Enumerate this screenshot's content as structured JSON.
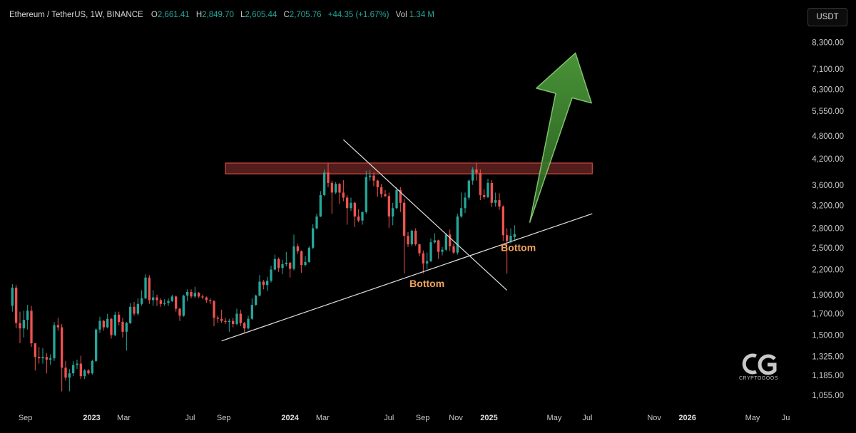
{
  "legend": {
    "symbol": "Ethereum / TetherUS, 1W, BINANCE",
    "open_label": "O",
    "open": "2,661.41",
    "high_label": "H",
    "high": "2,849.70",
    "low_label": "L",
    "low": "2,605.44",
    "close_label": "C",
    "close": "2,705.76",
    "change": "+44.35 (+1.67%)",
    "vol_label": "Vol",
    "vol": "1.34 M"
  },
  "currency": "USDT",
  "colors": {
    "up": "#26a69a",
    "down": "#ef5350",
    "background": "#000000",
    "resistance": "#ef5350",
    "arrow": "#4c9a3a",
    "annotation": "#f0a35c",
    "trendline": "#e0e0e0"
  },
  "chart_data": {
    "type": "candlestick",
    "interval": "1W",
    "y_scale": "log",
    "ylim": [
      1000,
      9000
    ],
    "xlim": [
      "2022-08-01",
      "2026-07-20"
    ],
    "grid": false,
    "y_ticks": [
      "8,300.00",
      "7,100.00",
      "6,300.00",
      "5,550.00",
      "4,800.00",
      "4,200.00",
      "3,600.00",
      "3,200.00",
      "2,800.00",
      "2,500.00",
      "2,200.00",
      "1,900.00",
      "1,700.00",
      "1,500.00",
      "1,325.00",
      "1,185.00",
      "1,055.00"
    ],
    "y_tick_values": [
      8300,
      7100,
      6300,
      5550,
      4800,
      4200,
      3600,
      3200,
      2800,
      2500,
      2200,
      1900,
      1700,
      1500,
      1325,
      1185,
      1055
    ],
    "x_ticks": [
      {
        "label": "Sep",
        "date": "2022-09-01",
        "bold": false
      },
      {
        "label": "2023",
        "date": "2023-01-01",
        "bold": true
      },
      {
        "label": "Mar",
        "date": "2023-03-01",
        "bold": false
      },
      {
        "label": "Jul",
        "date": "2023-07-01",
        "bold": false
      },
      {
        "label": "Sep",
        "date": "2023-09-01",
        "bold": false
      },
      {
        "label": "2024",
        "date": "2024-01-01",
        "bold": true
      },
      {
        "label": "Mar",
        "date": "2024-03-01",
        "bold": false
      },
      {
        "label": "Jul",
        "date": "2024-07-01",
        "bold": false
      },
      {
        "label": "Sep",
        "date": "2024-09-01",
        "bold": false
      },
      {
        "label": "Nov",
        "date": "2024-11-01",
        "bold": false
      },
      {
        "label": "2025",
        "date": "2025-01-01",
        "bold": true
      },
      {
        "label": "May",
        "date": "2025-05-01",
        "bold": false
      },
      {
        "label": "Jul",
        "date": "2025-07-01",
        "bold": false
      },
      {
        "label": "Nov",
        "date": "2025-11-01",
        "bold": false
      },
      {
        "label": "2026",
        "date": "2026-01-01",
        "bold": true
      },
      {
        "label": "May",
        "date": "2026-05-01",
        "bold": false
      },
      {
        "label": "Ju",
        "date": "2026-07-01",
        "bold": false
      }
    ],
    "candles": [
      {
        "d": "2022-08-08",
        "o": 1780,
        "h": 2020,
        "l": 1720,
        "c": 1980
      },
      {
        "d": "2022-08-15",
        "o": 1980,
        "h": 2010,
        "l": 1560,
        "c": 1610
      },
      {
        "d": "2022-08-22",
        "o": 1610,
        "h": 1720,
        "l": 1430,
        "c": 1560
      },
      {
        "d": "2022-08-29",
        "o": 1560,
        "h": 1730,
        "l": 1480,
        "c": 1640
      },
      {
        "d": "2022-09-05",
        "o": 1640,
        "h": 1790,
        "l": 1550,
        "c": 1730
      },
      {
        "d": "2022-09-12",
        "o": 1730,
        "h": 1780,
        "l": 1400,
        "c": 1430
      },
      {
        "d": "2022-09-19",
        "o": 1430,
        "h": 1420,
        "l": 1220,
        "c": 1320
      },
      {
        "d": "2022-09-26",
        "o": 1320,
        "h": 1400,
        "l": 1270,
        "c": 1310
      },
      {
        "d": "2022-10-03",
        "o": 1310,
        "h": 1390,
        "l": 1270,
        "c": 1320
      },
      {
        "d": "2022-10-10",
        "o": 1320,
        "h": 1350,
        "l": 1200,
        "c": 1300
      },
      {
        "d": "2022-10-17",
        "o": 1300,
        "h": 1340,
        "l": 1260,
        "c": 1310
      },
      {
        "d": "2022-10-24",
        "o": 1310,
        "h": 1620,
        "l": 1290,
        "c": 1590
      },
      {
        "d": "2022-10-31",
        "o": 1590,
        "h": 1660,
        "l": 1540,
        "c": 1570
      },
      {
        "d": "2022-11-07",
        "o": 1570,
        "h": 1600,
        "l": 1080,
        "c": 1240
      },
      {
        "d": "2022-11-14",
        "o": 1240,
        "h": 1290,
        "l": 1150,
        "c": 1170
      },
      {
        "d": "2022-11-21",
        "o": 1170,
        "h": 1230,
        "l": 1080,
        "c": 1200
      },
      {
        "d": "2022-11-28",
        "o": 1200,
        "h": 1290,
        "l": 1180,
        "c": 1260
      },
      {
        "d": "2022-12-05",
        "o": 1260,
        "h": 1300,
        "l": 1230,
        "c": 1270
      },
      {
        "d": "2022-12-12",
        "o": 1270,
        "h": 1330,
        "l": 1160,
        "c": 1180
      },
      {
        "d": "2022-12-19",
        "o": 1180,
        "h": 1230,
        "l": 1160,
        "c": 1220
      },
      {
        "d": "2022-12-26",
        "o": 1220,
        "h": 1230,
        "l": 1190,
        "c": 1200
      },
      {
        "d": "2023-01-02",
        "o": 1200,
        "h": 1300,
        "l": 1190,
        "c": 1290
      },
      {
        "d": "2023-01-09",
        "o": 1290,
        "h": 1560,
        "l": 1280,
        "c": 1550
      },
      {
        "d": "2023-01-16",
        "o": 1550,
        "h": 1670,
        "l": 1520,
        "c": 1630
      },
      {
        "d": "2023-01-23",
        "o": 1630,
        "h": 1640,
        "l": 1540,
        "c": 1570
      },
      {
        "d": "2023-01-30",
        "o": 1570,
        "h": 1700,
        "l": 1560,
        "c": 1650
      },
      {
        "d": "2023-02-06",
        "o": 1650,
        "h": 1660,
        "l": 1470,
        "c": 1500
      },
      {
        "d": "2023-02-13",
        "o": 1500,
        "h": 1720,
        "l": 1490,
        "c": 1690
      },
      {
        "d": "2023-02-20",
        "o": 1690,
        "h": 1720,
        "l": 1590,
        "c": 1620
      },
      {
        "d": "2023-02-27",
        "o": 1620,
        "h": 1660,
        "l": 1480,
        "c": 1530
      },
      {
        "d": "2023-03-06",
        "o": 1530,
        "h": 1620,
        "l": 1370,
        "c": 1610
      },
      {
        "d": "2023-03-13",
        "o": 1610,
        "h": 1810,
        "l": 1600,
        "c": 1770
      },
      {
        "d": "2023-03-20",
        "o": 1770,
        "h": 1820,
        "l": 1680,
        "c": 1700
      },
      {
        "d": "2023-03-27",
        "o": 1700,
        "h": 1860,
        "l": 1680,
        "c": 1800
      },
      {
        "d": "2023-04-03",
        "o": 1800,
        "h": 1950,
        "l": 1780,
        "c": 1860
      },
      {
        "d": "2023-04-10",
        "o": 1860,
        "h": 2140,
        "l": 1850,
        "c": 2100
      },
      {
        "d": "2023-04-17",
        "o": 2100,
        "h": 2130,
        "l": 1800,
        "c": 1840
      },
      {
        "d": "2023-04-24",
        "o": 1840,
        "h": 1950,
        "l": 1780,
        "c": 1870
      },
      {
        "d": "2023-05-01",
        "o": 1870,
        "h": 1900,
        "l": 1780,
        "c": 1840
      },
      {
        "d": "2023-05-08",
        "o": 1840,
        "h": 1860,
        "l": 1770,
        "c": 1800
      },
      {
        "d": "2023-05-15",
        "o": 1800,
        "h": 1850,
        "l": 1780,
        "c": 1810
      },
      {
        "d": "2023-05-22",
        "o": 1810,
        "h": 1860,
        "l": 1780,
        "c": 1830
      },
      {
        "d": "2023-05-29",
        "o": 1830,
        "h": 1900,
        "l": 1820,
        "c": 1880
      },
      {
        "d": "2023-06-05",
        "o": 1880,
        "h": 1890,
        "l": 1720,
        "c": 1750
      },
      {
        "d": "2023-06-12",
        "o": 1750,
        "h": 1760,
        "l": 1630,
        "c": 1680
      },
      {
        "d": "2023-06-19",
        "o": 1680,
        "h": 1900,
        "l": 1670,
        "c": 1890
      },
      {
        "d": "2023-06-26",
        "o": 1890,
        "h": 1960,
        "l": 1830,
        "c": 1930
      },
      {
        "d": "2023-07-03",
        "o": 1930,
        "h": 1960,
        "l": 1860,
        "c": 1880
      },
      {
        "d": "2023-07-10",
        "o": 1880,
        "h": 1990,
        "l": 1860,
        "c": 1920
      },
      {
        "d": "2023-07-17",
        "o": 1920,
        "h": 1930,
        "l": 1860,
        "c": 1880
      },
      {
        "d": "2023-07-24",
        "o": 1880,
        "h": 1900,
        "l": 1850,
        "c": 1870
      },
      {
        "d": "2023-07-31",
        "o": 1870,
        "h": 1880,
        "l": 1810,
        "c": 1840
      },
      {
        "d": "2023-08-07",
        "o": 1840,
        "h": 1860,
        "l": 1800,
        "c": 1830
      },
      {
        "d": "2023-08-14",
        "o": 1830,
        "h": 1840,
        "l": 1580,
        "c": 1660
      },
      {
        "d": "2023-08-21",
        "o": 1660,
        "h": 1680,
        "l": 1610,
        "c": 1650
      },
      {
        "d": "2023-08-28",
        "o": 1650,
        "h": 1740,
        "l": 1610,
        "c": 1630
      },
      {
        "d": "2023-09-04",
        "o": 1630,
        "h": 1660,
        "l": 1600,
        "c": 1620
      },
      {
        "d": "2023-09-11",
        "o": 1620,
        "h": 1650,
        "l": 1530,
        "c": 1630
      },
      {
        "d": "2023-09-18",
        "o": 1630,
        "h": 1660,
        "l": 1570,
        "c": 1600
      },
      {
        "d": "2023-09-25",
        "o": 1600,
        "h": 1750,
        "l": 1590,
        "c": 1700
      },
      {
        "d": "2023-10-02",
        "o": 1700,
        "h": 1740,
        "l": 1580,
        "c": 1610
      },
      {
        "d": "2023-10-09",
        "o": 1610,
        "h": 1620,
        "l": 1520,
        "c": 1560
      },
      {
        "d": "2023-10-16",
        "o": 1560,
        "h": 1680,
        "l": 1550,
        "c": 1650
      },
      {
        "d": "2023-10-23",
        "o": 1650,
        "h": 1860,
        "l": 1640,
        "c": 1790
      },
      {
        "d": "2023-10-30",
        "o": 1790,
        "h": 1900,
        "l": 1780,
        "c": 1890
      },
      {
        "d": "2023-11-06",
        "o": 1890,
        "h": 2130,
        "l": 1880,
        "c": 2050
      },
      {
        "d": "2023-11-13",
        "o": 2050,
        "h": 2070,
        "l": 1960,
        "c": 2010
      },
      {
        "d": "2023-11-20",
        "o": 2010,
        "h": 2110,
        "l": 1940,
        "c": 2060
      },
      {
        "d": "2023-11-27",
        "o": 2060,
        "h": 2250,
        "l": 2040,
        "c": 2200
      },
      {
        "d": "2023-12-04",
        "o": 2200,
        "h": 2400,
        "l": 2190,
        "c": 2340
      },
      {
        "d": "2023-12-11",
        "o": 2340,
        "h": 2360,
        "l": 2170,
        "c": 2220
      },
      {
        "d": "2023-12-18",
        "o": 2220,
        "h": 2330,
        "l": 2140,
        "c": 2270
      },
      {
        "d": "2023-12-25",
        "o": 2270,
        "h": 2440,
        "l": 2240,
        "c": 2290
      },
      {
        "d": "2024-01-01",
        "o": 2290,
        "h": 2300,
        "l": 2100,
        "c": 2210
      },
      {
        "d": "2024-01-08",
        "o": 2210,
        "h": 2700,
        "l": 2190,
        "c": 2520
      },
      {
        "d": "2024-01-15",
        "o": 2520,
        "h": 2560,
        "l": 2410,
        "c": 2450
      },
      {
        "d": "2024-01-22",
        "o": 2450,
        "h": 2460,
        "l": 2160,
        "c": 2260
      },
      {
        "d": "2024-01-29",
        "o": 2260,
        "h": 2380,
        "l": 2240,
        "c": 2300
      },
      {
        "d": "2024-02-05",
        "o": 2300,
        "h": 2520,
        "l": 2290,
        "c": 2500
      },
      {
        "d": "2024-02-12",
        "o": 2500,
        "h": 2870,
        "l": 2480,
        "c": 2800
      },
      {
        "d": "2024-02-19",
        "o": 2800,
        "h": 3050,
        "l": 2780,
        "c": 3000
      },
      {
        "d": "2024-02-26",
        "o": 3000,
        "h": 3480,
        "l": 2990,
        "c": 3400
      },
      {
        "d": "2024-03-04",
        "o": 3400,
        "h": 3950,
        "l": 3380,
        "c": 3880
      },
      {
        "d": "2024-03-11",
        "o": 3880,
        "h": 4090,
        "l": 3560,
        "c": 3650
      },
      {
        "d": "2024-03-18",
        "o": 3650,
        "h": 3700,
        "l": 3050,
        "c": 3450
      },
      {
        "d": "2024-03-25",
        "o": 3450,
        "h": 3670,
        "l": 3420,
        "c": 3630
      },
      {
        "d": "2024-04-01",
        "o": 3630,
        "h": 3650,
        "l": 3230,
        "c": 3450
      },
      {
        "d": "2024-04-08",
        "o": 3450,
        "h": 3710,
        "l": 3280,
        "c": 3350
      },
      {
        "d": "2024-04-15",
        "o": 3350,
        "h": 3400,
        "l": 2860,
        "c": 3150
      },
      {
        "d": "2024-04-22",
        "o": 3150,
        "h": 3350,
        "l": 3100,
        "c": 3250
      },
      {
        "d": "2024-04-29",
        "o": 3250,
        "h": 3270,
        "l": 2820,
        "c": 3000
      },
      {
        "d": "2024-05-06",
        "o": 3000,
        "h": 3130,
        "l": 2900,
        "c": 2930
      },
      {
        "d": "2024-05-13",
        "o": 2930,
        "h": 3090,
        "l": 2860,
        "c": 3080
      },
      {
        "d": "2024-05-20",
        "o": 3080,
        "h": 3920,
        "l": 3050,
        "c": 3780
      },
      {
        "d": "2024-05-27",
        "o": 3780,
        "h": 3930,
        "l": 3700,
        "c": 3810
      },
      {
        "d": "2024-06-03",
        "o": 3810,
        "h": 3880,
        "l": 3580,
        "c": 3700
      },
      {
        "d": "2024-06-10",
        "o": 3700,
        "h": 3720,
        "l": 3370,
        "c": 3560
      },
      {
        "d": "2024-06-17",
        "o": 3560,
        "h": 3630,
        "l": 3350,
        "c": 3420
      },
      {
        "d": "2024-06-24",
        "o": 3420,
        "h": 3500,
        "l": 3360,
        "c": 3380
      },
      {
        "d": "2024-07-01",
        "o": 3380,
        "h": 3450,
        "l": 2810,
        "c": 3000
      },
      {
        "d": "2024-07-08",
        "o": 3000,
        "h": 3250,
        "l": 2850,
        "c": 3150
      },
      {
        "d": "2024-07-15",
        "o": 3150,
        "h": 3560,
        "l": 3130,
        "c": 3500
      },
      {
        "d": "2024-07-22",
        "o": 3500,
        "h": 3560,
        "l": 3080,
        "c": 3250
      },
      {
        "d": "2024-07-29",
        "o": 3250,
        "h": 3330,
        "l": 2150,
        "c": 2680
      },
      {
        "d": "2024-08-05",
        "o": 2680,
        "h": 2740,
        "l": 2510,
        "c": 2550
      },
      {
        "d": "2024-08-12",
        "o": 2550,
        "h": 2780,
        "l": 2520,
        "c": 2760
      },
      {
        "d": "2024-08-19",
        "o": 2760,
        "h": 2800,
        "l": 2530,
        "c": 2550
      },
      {
        "d": "2024-08-26",
        "o": 2550,
        "h": 2560,
        "l": 2380,
        "c": 2420
      },
      {
        "d": "2024-09-02",
        "o": 2420,
        "h": 2460,
        "l": 2150,
        "c": 2280
      },
      {
        "d": "2024-09-09",
        "o": 2280,
        "h": 2430,
        "l": 2200,
        "c": 2310
      },
      {
        "d": "2024-09-16",
        "o": 2310,
        "h": 2640,
        "l": 2300,
        "c": 2580
      },
      {
        "d": "2024-09-23",
        "o": 2580,
        "h": 2720,
        "l": 2560,
        "c": 2610
      },
      {
        "d": "2024-09-30",
        "o": 2610,
        "h": 2620,
        "l": 2340,
        "c": 2440
      },
      {
        "d": "2024-10-07",
        "o": 2440,
        "h": 2510,
        "l": 2390,
        "c": 2470
      },
      {
        "d": "2024-10-14",
        "o": 2470,
        "h": 2720,
        "l": 2450,
        "c": 2700
      },
      {
        "d": "2024-10-21",
        "o": 2700,
        "h": 2780,
        "l": 2450,
        "c": 2520
      },
      {
        "d": "2024-10-28",
        "o": 2520,
        "h": 2560,
        "l": 2410,
        "c": 2430
      },
      {
        "d": "2024-11-04",
        "o": 2430,
        "h": 3050,
        "l": 2400,
        "c": 3000
      },
      {
        "d": "2024-11-11",
        "o": 3000,
        "h": 3450,
        "l": 2980,
        "c": 3150
      },
      {
        "d": "2024-11-18",
        "o": 3150,
        "h": 3450,
        "l": 3060,
        "c": 3350
      },
      {
        "d": "2024-11-25",
        "o": 3350,
        "h": 3720,
        "l": 3310,
        "c": 3700
      },
      {
        "d": "2024-12-02",
        "o": 3700,
        "h": 4000,
        "l": 3610,
        "c": 3950
      },
      {
        "d": "2024-12-09",
        "o": 3950,
        "h": 4100,
        "l": 3700,
        "c": 3870
      },
      {
        "d": "2024-12-16",
        "o": 3870,
        "h": 3950,
        "l": 3300,
        "c": 3400
      },
      {
        "d": "2024-12-23",
        "o": 3400,
        "h": 3520,
        "l": 3320,
        "c": 3360
      },
      {
        "d": "2024-12-30",
        "o": 3360,
        "h": 3740,
        "l": 3340,
        "c": 3650
      },
      {
        "d": "2025-01-06",
        "o": 3650,
        "h": 3710,
        "l": 3170,
        "c": 3250
      },
      {
        "d": "2025-01-13",
        "o": 3250,
        "h": 3450,
        "l": 3180,
        "c": 3300
      },
      {
        "d": "2025-01-20",
        "o": 3300,
        "h": 3440,
        "l": 3120,
        "c": 3180
      },
      {
        "d": "2025-01-27",
        "o": 3180,
        "h": 3200,
        "l": 2600,
        "c": 2690
      },
      {
        "d": "2025-02-03",
        "o": 2690,
        "h": 2800,
        "l": 2150,
        "c": 2600
      },
      {
        "d": "2025-02-10",
        "o": 2600,
        "h": 2800,
        "l": 2560,
        "c": 2680
      },
      {
        "d": "2025-02-17",
        "o": 2661.41,
        "h": 2849.7,
        "l": 2605.44,
        "c": 2705.76
      }
    ],
    "resistance_zone": {
      "x_start": "2023-09-04",
      "x_end": "2025-07-10",
      "y_low": 3850,
      "y_high": 4100
    },
    "trendlines": [
      {
        "name": "support",
        "x1": "2023-08-28",
        "y1": 1450,
        "x2": "2025-07-10",
        "y2": 3050
      },
      {
        "name": "descending",
        "x1": "2024-04-08",
        "y1": 4700,
        "x2": "2025-02-03",
        "y2": 1950
      }
    ],
    "arrow": {
      "x_base": "2025-03-17",
      "y_base": 2900,
      "x_tip": "2025-06-09",
      "y_tip": 7800
    },
    "annotations": [
      {
        "text": "Bottom",
        "x": "2024-09-09",
        "y": 1985
      },
      {
        "text": "Bottom",
        "x": "2025-02-24",
        "y": 2450
      }
    ]
  },
  "branding": {
    "logo_text": "CRYPTOGOOS"
  }
}
